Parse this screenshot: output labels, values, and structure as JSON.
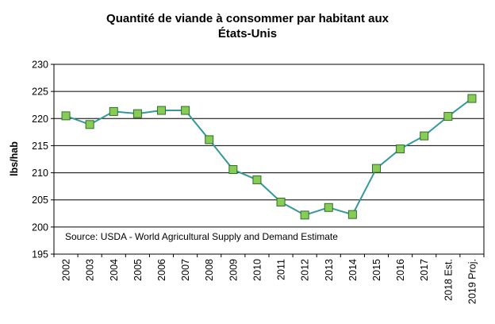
{
  "chart_data": {
    "type": "line",
    "title_lines": [
      "Quantité de viande à consommer par habitant aux",
      "États-Unis"
    ],
    "xlabel": "",
    "ylabel": "lbs/hab",
    "ylim": [
      195,
      230
    ],
    "yticks": [
      195,
      200,
      205,
      210,
      215,
      220,
      225,
      230
    ],
    "categories": [
      "2002",
      "2003",
      "2004",
      "2005",
      "2006",
      "2007",
      "2008",
      "2009",
      "2010",
      "2011",
      "2012",
      "2013",
      "2014",
      "2015",
      "2016",
      "2017",
      "2018 Est.",
      "2019 Proj."
    ],
    "series": [
      {
        "values": [
          220.5,
          218.9,
          221.3,
          220.9,
          221.5,
          221.5,
          216.1,
          210.6,
          208.7,
          204.6,
          202.2,
          203.6,
          202.3,
          210.8,
          214.4,
          216.8,
          220.4,
          223.7
        ],
        "color": "#339999",
        "marker_color": "#88cc55",
        "marker_edge": "#2e6e2e"
      }
    ],
    "grid": "horizontal",
    "annotation": "Source: USDA - World Agricultural Supply and Demand Estimate",
    "legend": "none"
  }
}
